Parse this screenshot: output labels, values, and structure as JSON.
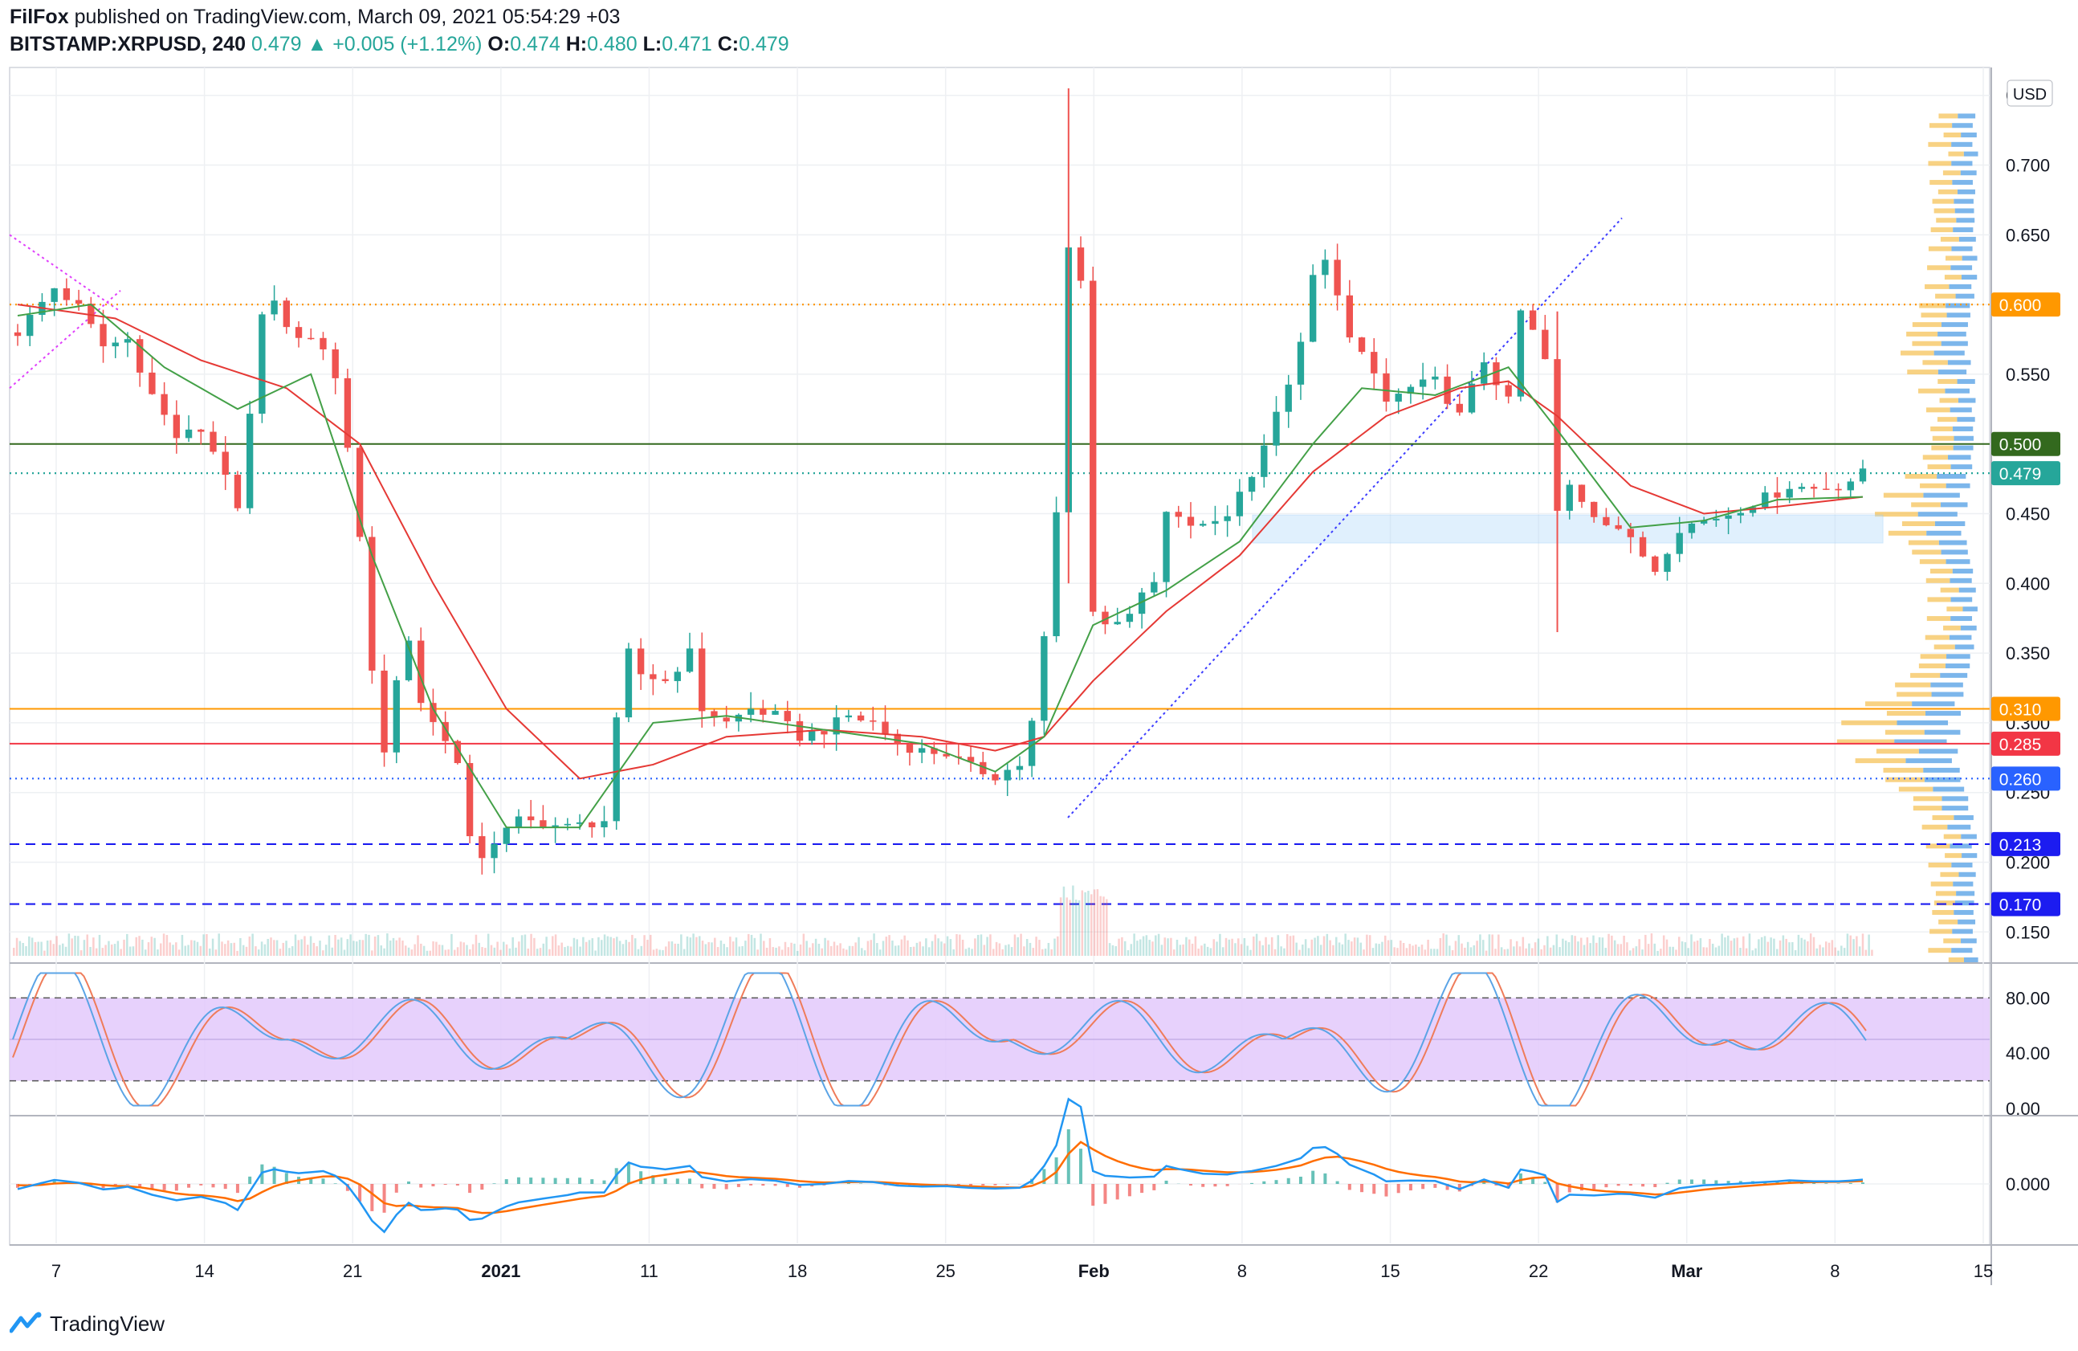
{
  "header": {
    "publisher": "FilFox",
    "published_text": "published on TradingView.com, March 09, 2021 05:54:29 +03",
    "symbol": "BITSTAMP:XRPUSD, 240",
    "last": "0.479",
    "change": "+0.005 (+1.12%)",
    "o_label": "O:",
    "o_value": "0.474",
    "h_label": "H:",
    "h_value": "0.480",
    "l_label": "L:",
    "l_value": "0.471",
    "c_label": "C:",
    "c_value": "0.479"
  },
  "footer": {
    "brand": "TradingView"
  },
  "colors": {
    "up": "#26a69a",
    "down": "#ef5350",
    "ma_red": "#e53935",
    "ma_green": "#43a047",
    "stoch_k": "#5ba4e6",
    "stoch_d": "#ef7c5a",
    "stoch_band": "#e3c9fb",
    "macd_line": "#2196f3",
    "signal_line": "#ff6d00"
  },
  "chart_data": [
    {
      "type": "candlestick",
      "currency_label": "USD",
      "y_ticks": [
        "0.150",
        "0.200",
        "0.250",
        "0.300",
        "0.350",
        "0.400",
        "0.450",
        "0.500",
        "0.550",
        "0.600",
        "0.650",
        "0.700",
        "0.750"
      ],
      "ylim": [
        0.13,
        0.77
      ],
      "x_ticks": [
        "7",
        "14",
        "21",
        "2021",
        "11",
        "18",
        "25",
        "Feb",
        "8",
        "15",
        "22",
        "Mar",
        "8",
        "15"
      ],
      "price_levels": [
        {
          "label": "0.600",
          "value": 0.6,
          "color": "#ff9800",
          "style": "dotted"
        },
        {
          "label": "0.500",
          "value": 0.5,
          "color": "#33691e",
          "style": "solid"
        },
        {
          "label": "0.479",
          "value": 0.479,
          "color": "#26a69a",
          "style": "dotted"
        },
        {
          "label": "0.310",
          "value": 0.31,
          "color": "#ff9800",
          "style": "solid"
        },
        {
          "label": "0.285",
          "value": 0.285,
          "color": "#f23645",
          "style": "solid"
        },
        {
          "label": "0.260",
          "value": 0.26,
          "color": "#2962ff",
          "style": "dotted"
        },
        {
          "label": "0.213",
          "value": 0.213,
          "color": "#1c1cf0",
          "style": "dashed"
        },
        {
          "label": "0.170",
          "value": 0.17,
          "color": "#1c1cf0",
          "style": "dashed"
        }
      ],
      "close_path": [
        [
          0,
          0.58
        ],
        [
          3,
          0.612
        ],
        [
          5,
          0.598
        ],
        [
          7,
          0.57
        ],
        [
          9,
          0.575
        ],
        [
          11,
          0.535
        ],
        [
          13,
          0.505
        ],
        [
          15,
          0.51
        ],
        [
          17,
          0.48
        ],
        [
          18,
          0.45
        ],
        [
          19,
          0.52
        ],
        [
          20,
          0.59
        ],
        [
          21,
          0.6
        ],
        [
          23,
          0.575
        ],
        [
          25,
          0.57
        ],
        [
          26,
          0.545
        ],
        [
          27,
          0.5
        ],
        [
          28,
          0.43
        ],
        [
          29,
          0.34
        ],
        [
          30,
          0.28
        ],
        [
          31,
          0.33
        ],
        [
          32,
          0.36
        ],
        [
          33,
          0.315
        ],
        [
          34,
          0.3
        ],
        [
          35,
          0.29
        ],
        [
          36,
          0.27
        ],
        [
          37,
          0.215
        ],
        [
          38,
          0.205
        ],
        [
          39,
          0.215
        ],
        [
          41,
          0.23
        ],
        [
          43,
          0.228
        ],
        [
          45,
          0.225
        ],
        [
          48,
          0.23
        ],
        [
          49,
          0.3
        ],
        [
          50,
          0.35
        ],
        [
          51,
          0.335
        ],
        [
          53,
          0.33
        ],
        [
          55,
          0.35
        ],
        [
          56,
          0.31
        ],
        [
          58,
          0.3
        ],
        [
          60,
          0.31
        ],
        [
          62,
          0.305
        ],
        [
          64,
          0.29
        ],
        [
          66,
          0.295
        ],
        [
          68,
          0.305
        ],
        [
          70,
          0.3
        ],
        [
          72,
          0.285
        ],
        [
          74,
          0.28
        ],
        [
          76,
          0.278
        ],
        [
          78,
          0.268
        ],
        [
          80,
          0.262
        ],
        [
          82,
          0.27
        ],
        [
          83,
          0.3
        ],
        [
          84,
          0.36
        ],
        [
          85,
          0.45
        ],
        [
          86,
          0.64
        ],
        [
          87,
          0.62
        ],
        [
          88,
          0.38
        ],
        [
          89,
          0.37
        ],
        [
          91,
          0.38
        ],
        [
          93,
          0.4
        ],
        [
          94,
          0.45
        ],
        [
          95,
          0.445
        ],
        [
          97,
          0.44
        ],
        [
          99,
          0.45
        ],
        [
          101,
          0.48
        ],
        [
          103,
          0.52
        ],
        [
          105,
          0.57
        ],
        [
          106,
          0.62
        ],
        [
          107,
          0.63
        ],
        [
          108,
          0.61
        ],
        [
          109,
          0.575
        ],
        [
          111,
          0.55
        ],
        [
          112,
          0.53
        ],
        [
          114,
          0.54
        ],
        [
          116,
          0.545
        ],
        [
          118,
          0.52
        ],
        [
          119,
          0.54
        ],
        [
          120,
          0.56
        ],
        [
          122,
          0.53
        ],
        [
          123,
          0.595
        ],
        [
          124,
          0.58
        ],
        [
          125,
          0.56
        ],
        [
          126,
          0.45
        ],
        [
          127,
          0.47
        ],
        [
          129,
          0.45
        ],
        [
          131,
          0.44
        ],
        [
          132,
          0.43
        ],
        [
          134,
          0.41
        ],
        [
          136,
          0.44
        ],
        [
          138,
          0.445
        ],
        [
          140,
          0.45
        ],
        [
          142,
          0.458
        ],
        [
          144,
          0.465
        ],
        [
          145,
          0.47
        ],
        [
          147,
          0.468
        ],
        [
          149,
          0.47
        ],
        [
          150,
          0.474
        ],
        [
          151,
          0.479
        ]
      ],
      "n_bars": 152,
      "ma_red": [
        [
          0,
          0.6
        ],
        [
          8,
          0.59
        ],
        [
          15,
          0.56
        ],
        [
          22,
          0.54
        ],
        [
          28,
          0.5
        ],
        [
          34,
          0.4
        ],
        [
          40,
          0.31
        ],
        [
          46,
          0.26
        ],
        [
          52,
          0.27
        ],
        [
          58,
          0.29
        ],
        [
          66,
          0.295
        ],
        [
          74,
          0.29
        ],
        [
          80,
          0.28
        ],
        [
          84,
          0.29
        ],
        [
          88,
          0.33
        ],
        [
          94,
          0.38
        ],
        [
          100,
          0.42
        ],
        [
          106,
          0.48
        ],
        [
          112,
          0.52
        ],
        [
          118,
          0.54
        ],
        [
          122,
          0.545
        ],
        [
          126,
          0.52
        ],
        [
          132,
          0.47
        ],
        [
          138,
          0.45
        ],
        [
          144,
          0.455
        ],
        [
          151,
          0.462
        ]
      ],
      "ma_green": [
        [
          0,
          0.592
        ],
        [
          6,
          0.6
        ],
        [
          12,
          0.555
        ],
        [
          18,
          0.525
        ],
        [
          24,
          0.55
        ],
        [
          29,
          0.42
        ],
        [
          34,
          0.31
        ],
        [
          40,
          0.225
        ],
        [
          46,
          0.225
        ],
        [
          52,
          0.3
        ],
        [
          58,
          0.305
        ],
        [
          66,
          0.295
        ],
        [
          74,
          0.285
        ],
        [
          80,
          0.265
        ],
        [
          84,
          0.29
        ],
        [
          88,
          0.37
        ],
        [
          94,
          0.395
        ],
        [
          100,
          0.43
        ],
        [
          106,
          0.5
        ],
        [
          110,
          0.54
        ],
        [
          116,
          0.535
        ],
        [
          122,
          0.555
        ],
        [
          126,
          0.51
        ],
        [
          132,
          0.44
        ],
        [
          138,
          0.445
        ],
        [
          144,
          0.46
        ],
        [
          151,
          0.462
        ]
      ],
      "volume_note": "volume histogram at bottom"
    },
    {
      "type": "line",
      "indicator": "stochastic",
      "y_ticks": [
        "80.00",
        "40.00",
        "0.00"
      ],
      "band": [
        20,
        80
      ]
    },
    {
      "type": "line",
      "indicator": "macd",
      "y_ticks": [
        "0.000"
      ]
    }
  ]
}
